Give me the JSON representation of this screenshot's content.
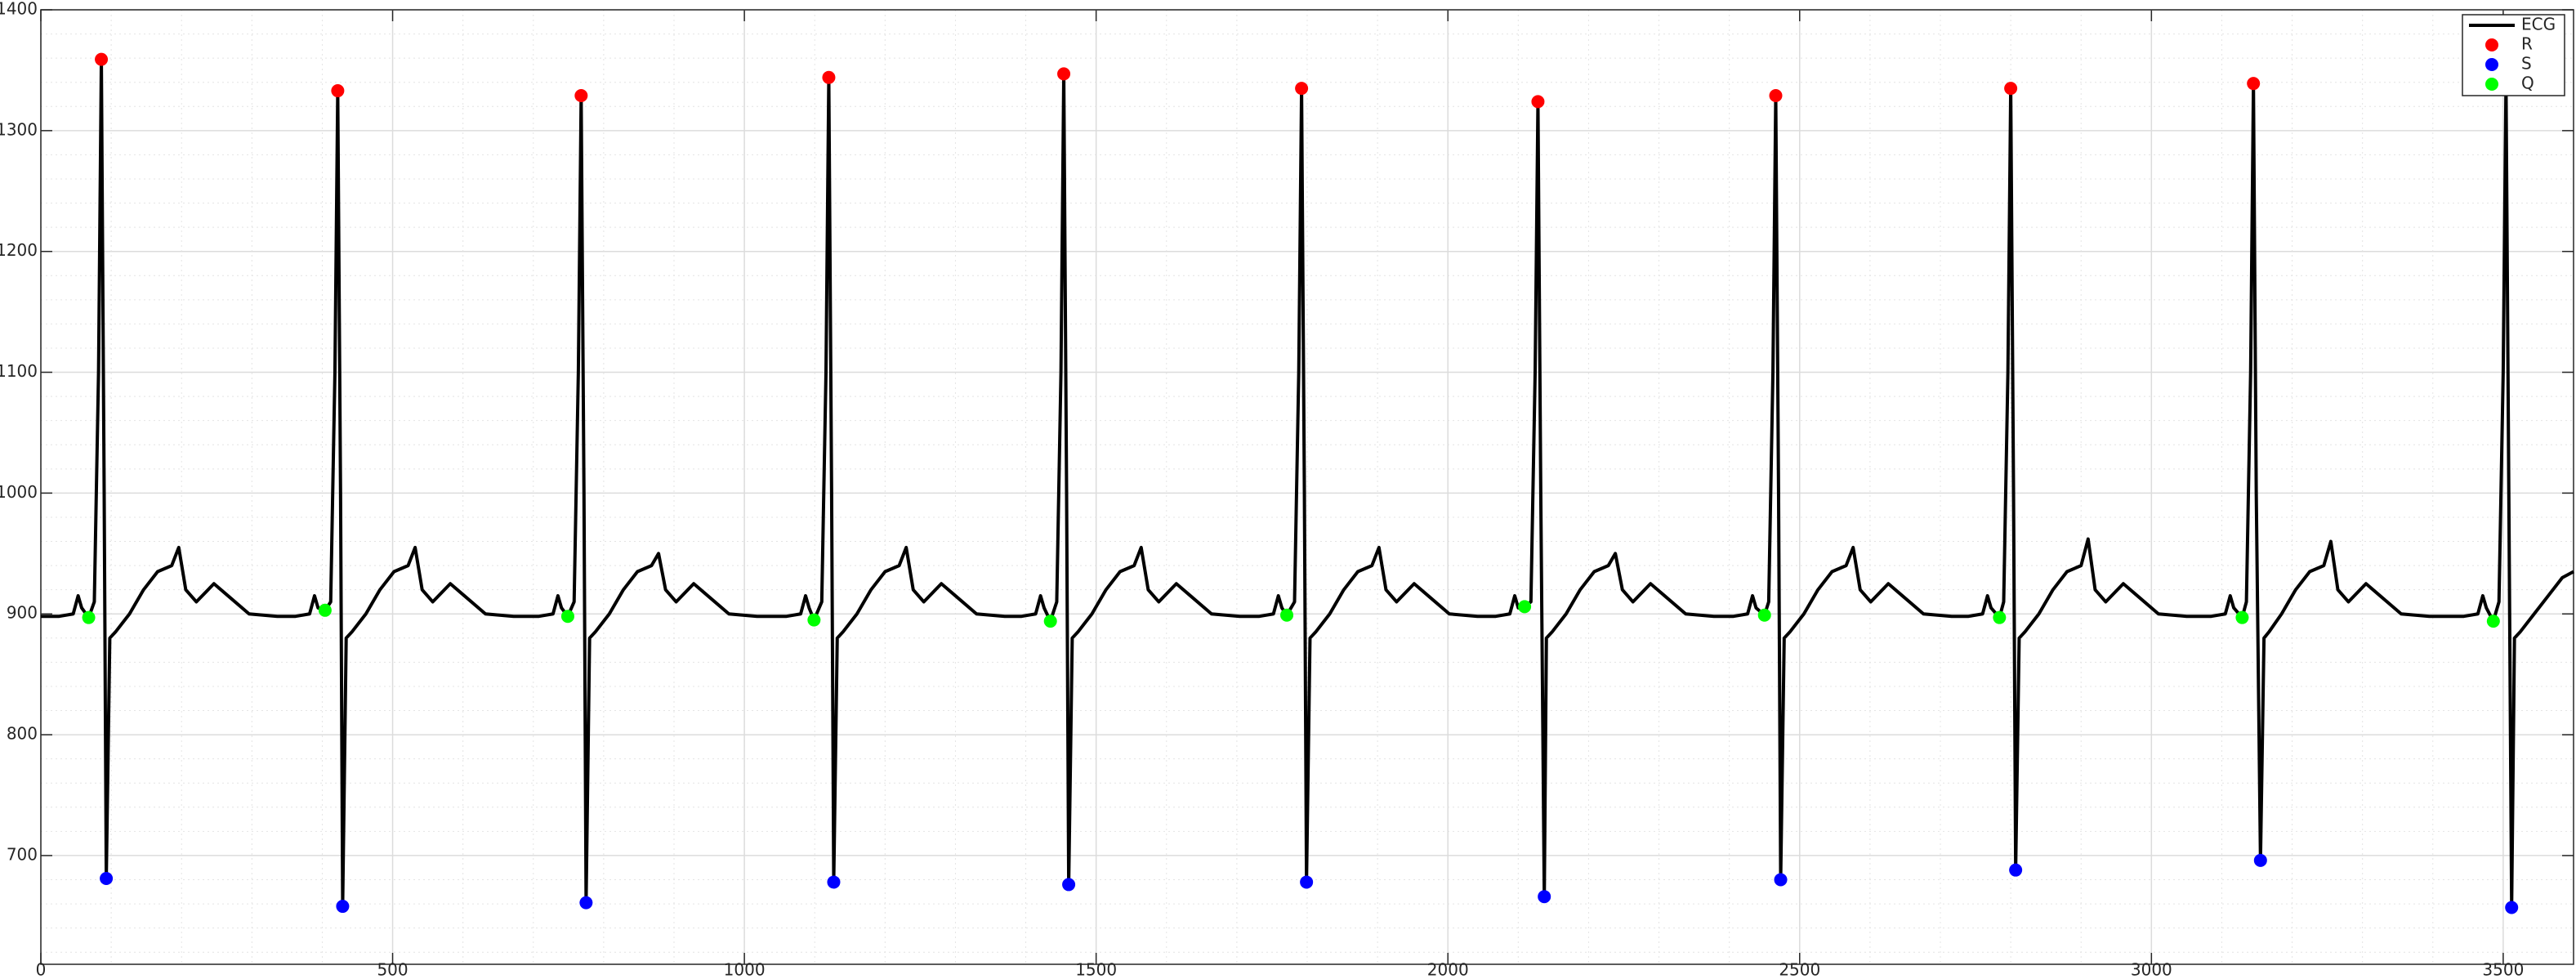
{
  "chart_data": {
    "type": "line",
    "xlim": [
      0,
      3600
    ],
    "ylim": [
      610,
      1400
    ],
    "xticks": [
      0,
      500,
      1000,
      1500,
      2000,
      2500,
      3000,
      3500
    ],
    "yticks": [
      700,
      800,
      900,
      1000,
      1100,
      1200,
      1300,
      1400
    ],
    "grid": true,
    "minor_grid": true,
    "legend": "northeast",
    "series": [
      {
        "name": "ECG",
        "color": "#000000",
        "style": "line",
        "x": [
          0,
          26,
          46,
          53,
          58,
          68,
          76,
          82,
          86,
          90,
          93,
          98,
          106,
          126,
          146,
          166,
          186,
          196,
          206,
          221,
          246,
          266,
          296,
          336,
          362,
          382,
          389,
          394,
          404,
          412,
          418,
          422,
          426,
          429,
          434,
          442,
          462,
          482,
          502,
          522,
          532,
          542,
          557,
          582,
          602,
          632,
          672,
          708,
          728,
          735,
          740,
          749,
          758,
          764,
          768,
          772,
          775,
          780,
          788,
          808,
          828,
          848,
          868,
          878,
          888,
          903,
          928,
          948,
          978,
          1018,
          1060,
          1080,
          1087,
          1092,
          1099,
          1110,
          1116,
          1120,
          1124,
          1127,
          1132,
          1140,
          1160,
          1180,
          1200,
          1220,
          1230,
          1240,
          1255,
          1280,
          1300,
          1330,
          1370,
          1394,
          1414,
          1421,
          1426,
          1435,
          1444,
          1450,
          1454,
          1458,
          1461,
          1466,
          1474,
          1494,
          1514,
          1534,
          1554,
          1564,
          1574,
          1589,
          1614,
          1634,
          1664,
          1704,
          1732,
          1752,
          1759,
          1764,
          1771,
          1782,
          1788,
          1792,
          1796,
          1799,
          1804,
          1812,
          1832,
          1852,
          1872,
          1892,
          1902,
          1912,
          1927,
          1952,
          1972,
          2002,
          2042,
          2068,
          2088,
          2095,
          2100,
          2109,
          2118,
          2124,
          2128,
          2132,
          2137,
          2140,
          2148,
          2168,
          2188,
          2208,
          2228,
          2238,
          2248,
          2263,
          2288,
          2308,
          2338,
          2378,
          2406,
          2426,
          2433,
          2438,
          2450,
          2456,
          2462,
          2466,
          2470,
          2473,
          2478,
          2486,
          2506,
          2526,
          2546,
          2566,
          2576,
          2586,
          2601,
          2626,
          2646,
          2676,
          2716,
          2740,
          2760,
          2767,
          2772,
          2784,
          2790,
          2796,
          2800,
          2804,
          2807,
          2812,
          2820,
          2840,
          2860,
          2880,
          2900,
          2910,
          2920,
          2935,
          2960,
          2980,
          3010,
          3050,
          3085,
          3105,
          3112,
          3117,
          3129,
          3135,
          3141,
          3145,
          3149,
          3155,
          3160,
          3167,
          3185,
          3205,
          3225,
          3245,
          3255,
          3265,
          3280,
          3305,
          3325,
          3355,
          3395,
          3444,
          3464,
          3471,
          3476,
          3486,
          3494,
          3500,
          3504,
          3508,
          3512,
          3516,
          3524,
          3544,
          3564,
          3584,
          3600
        ],
        "values": [
          898,
          898,
          900,
          915,
          905,
          897,
          910,
          1100,
          1359,
          1000,
          681,
          880,
          885,
          900,
          920,
          935,
          940,
          955,
          920,
          910,
          925,
          915,
          900,
          898,
          898,
          900,
          915,
          905,
          903,
          910,
          1100,
          1333,
          1000,
          658,
          880,
          885,
          900,
          920,
          935,
          940,
          955,
          920,
          910,
          925,
          915,
          900,
          898,
          898,
          900,
          915,
          905,
          898,
          910,
          1100,
          1329,
          1000,
          661,
          880,
          885,
          900,
          920,
          935,
          940,
          950,
          920,
          910,
          925,
          915,
          900,
          898,
          898,
          900,
          915,
          905,
          895,
          910,
          1100,
          1344,
          1000,
          678,
          880,
          885,
          900,
          920,
          935,
          940,
          955,
          920,
          910,
          925,
          915,
          900,
          898,
          898,
          900,
          915,
          905,
          894,
          910,
          1100,
          1347,
          1000,
          676,
          880,
          885,
          900,
          920,
          935,
          940,
          955,
          920,
          910,
          925,
          915,
          900,
          898,
          898,
          900,
          915,
          905,
          899,
          910,
          1100,
          1335,
          1000,
          678,
          880,
          885,
          900,
          920,
          935,
          940,
          955,
          920,
          910,
          925,
          915,
          900,
          898,
          898,
          900,
          915,
          905,
          906,
          910,
          1100,
          1324,
          1000,
          666,
          880,
          885,
          900,
          920,
          935,
          940,
          950,
          920,
          910,
          925,
          915,
          900,
          898,
          898,
          900,
          915,
          905,
          899,
          910,
          1100,
          1329,
          1000,
          680,
          880,
          885,
          900,
          920,
          935,
          940,
          955,
          920,
          910,
          925,
          915,
          900,
          898,
          898,
          900,
          915,
          905,
          897,
          910,
          1100,
          1335,
          1000,
          688,
          880,
          885,
          900,
          920,
          935,
          940,
          962,
          920,
          910,
          925,
          915,
          900,
          898,
          898,
          900,
          915,
          905,
          897,
          910,
          1100,
          1339,
          1000,
          696,
          880,
          885,
          900,
          920,
          935,
          940,
          960,
          920,
          910,
          925,
          915,
          900,
          898,
          898,
          900,
          915,
          905,
          894,
          910,
          1100,
          1340,
          1000,
          657,
          880,
          885,
          900,
          915,
          930,
          935
        ]
      },
      {
        "name": "R",
        "color": "#ff0000",
        "style": "markers",
        "x": [
          86,
          422,
          768,
          1120,
          1454,
          1792,
          2128,
          2466,
          2800,
          3145
        ],
        "values": [
          1359,
          1333,
          1329,
          1344,
          1347,
          1335,
          1324,
          1329,
          1335,
          1339
        ]
      },
      {
        "name": "S",
        "color": "#0000ff",
        "style": "markers",
        "x": [
          93,
          429,
          775,
          1127,
          1461,
          1799,
          2137,
          2473,
          2807,
          3155,
          3512
        ],
        "values": [
          681,
          658,
          661,
          678,
          676,
          678,
          666,
          680,
          688,
          696,
          657
        ]
      },
      {
        "name": "Q",
        "color": "#00ff00",
        "style": "markers",
        "x": [
          68,
          404,
          749,
          1099,
          1435,
          1771,
          2109,
          2450,
          2784,
          3129,
          3486
        ],
        "values": [
          897,
          903,
          898,
          895,
          894,
          899,
          906,
          899,
          897,
          897,
          894
        ]
      }
    ]
  }
}
